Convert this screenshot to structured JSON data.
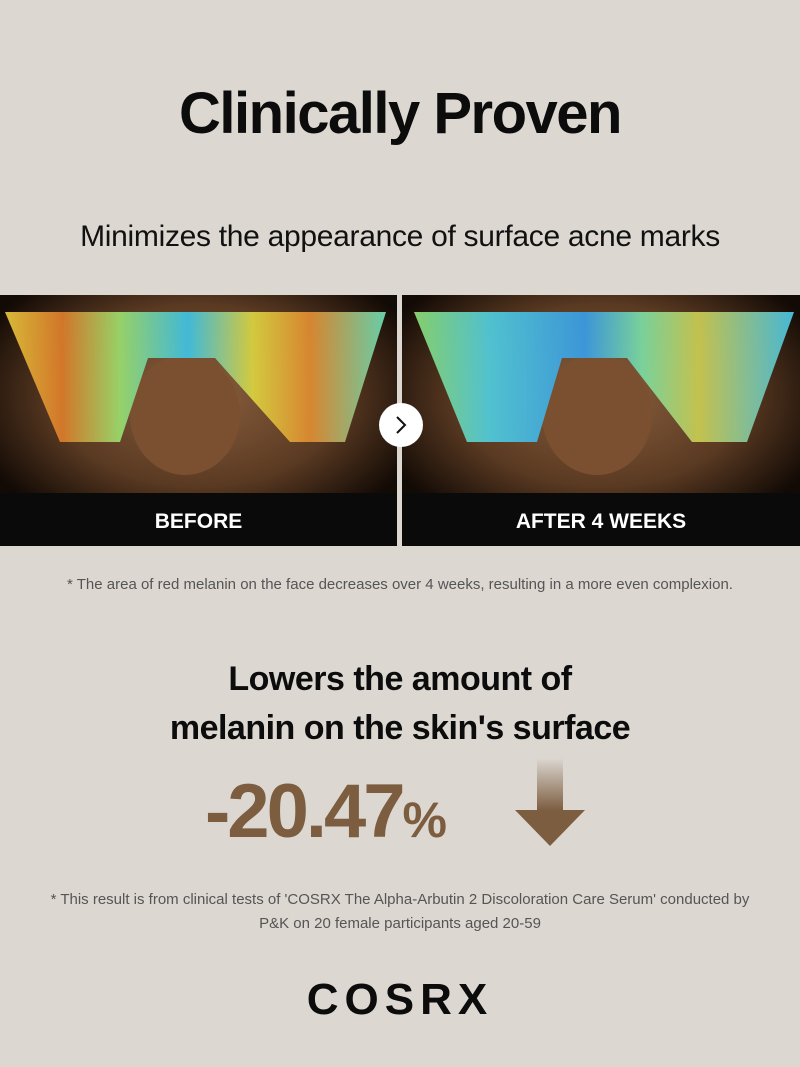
{
  "title": "Clinically Proven",
  "subtitle": "Minimizes the appearance of surface acne marks",
  "comparison": {
    "before_label": "BEFORE",
    "after_label": "AFTER 4 WEEKS",
    "next_icon": "chevron-right-icon"
  },
  "note_melanin": "* The area of red melanin on the face decreases over 4 weeks, resulting in a more even complexion.",
  "result": {
    "heading_line1": "Lowers the amount of",
    "heading_line2": "melanin on the skin's surface",
    "value": "-20.47",
    "unit": "%",
    "trend_icon": "arrow-down-icon",
    "accent_color": "#7c5d3f"
  },
  "disclaimer_line1": "* This result is from clinical tests of 'COSRX The Alpha-Arbutin 2 Discoloration Care Serum' conducted by",
  "disclaimer_line2": "P&K on 20 female participants aged 20-59",
  "brand": "COSRX"
}
